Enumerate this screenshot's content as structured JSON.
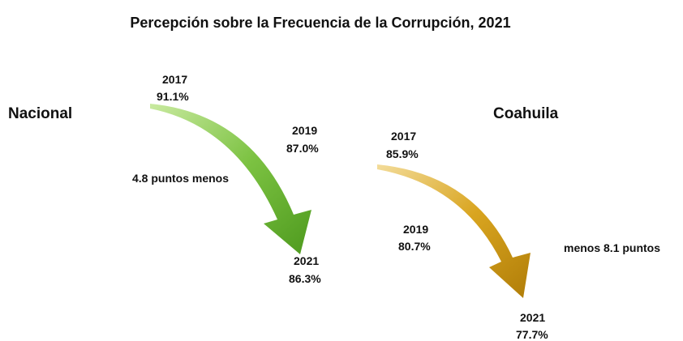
{
  "title": "Percepción sobre la Frecuencia de la Corrupción, 2021",
  "groups": [
    {
      "name": "Nacional",
      "note": "4.8 puntos menos",
      "points": [
        {
          "year": "2017",
          "value": "91.1%"
        },
        {
          "year": "2019",
          "value": "87.0%"
        },
        {
          "year": "2021",
          "value": "86.3%"
        }
      ]
    },
    {
      "name": "Coahuila",
      "note": "menos 8.1 puntos",
      "points": [
        {
          "year": "2017",
          "value": "85.9%"
        },
        {
          "year": "2019",
          "value": "80.7%"
        },
        {
          "year": "2021",
          "value": "77.7%"
        }
      ]
    }
  ]
}
